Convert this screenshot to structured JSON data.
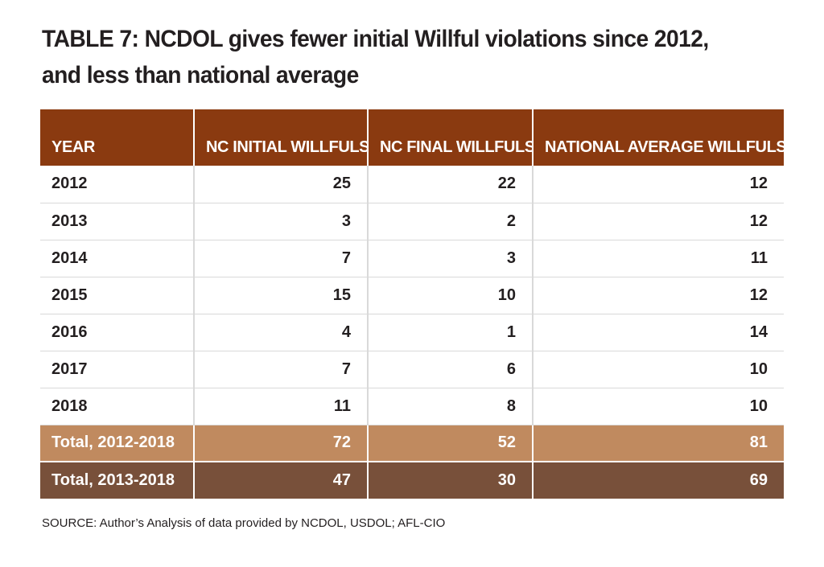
{
  "title": "TABLE 7:  NCDOL gives fewer initial Willful violations since 2012, and less than national average",
  "table": {
    "headers": [
      "YEAR",
      "NC INITIAL WILLFULS",
      "NC FINAL WILLFULS",
      "NATIONAL AVERAGE WILLFULS"
    ],
    "rows": [
      [
        "2012",
        "25",
        "22",
        "12"
      ],
      [
        "2013",
        "3",
        "2",
        "12"
      ],
      [
        "2014",
        "7",
        "3",
        "11"
      ],
      [
        "2015",
        "15",
        "10",
        "12"
      ],
      [
        "2016",
        "4",
        "1",
        "14"
      ],
      [
        "2017",
        "7",
        "6",
        "10"
      ],
      [
        "2018",
        "11",
        "8",
        "10"
      ]
    ],
    "totals": [
      [
        "Total, 2012-2018",
        "72",
        "52",
        "81"
      ],
      [
        "Total, 2013-2018",
        "47",
        "30",
        "69"
      ]
    ]
  },
  "source": "SOURCE: Author’s Analysis of data provided by NCDOL, USDOL; AFL-CIO",
  "colors": {
    "header_bg": "#8a3a10",
    "total1_bg": "#c08a5f",
    "total2_bg": "#78503a"
  }
}
